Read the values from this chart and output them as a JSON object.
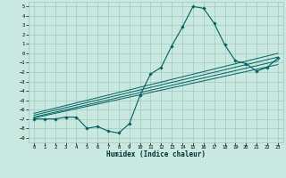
{
  "xlabel": "Humidex (Indice chaleur)",
  "bg_color": "#c8e8e0",
  "grid_color": "#a0c8c0",
  "line_color": "#006060",
  "xlim": [
    -0.5,
    23.5
  ],
  "ylim": [
    -9.5,
    5.5
  ],
  "yticks": [
    5,
    4,
    3,
    2,
    1,
    0,
    -1,
    -2,
    -3,
    -4,
    -5,
    -6,
    -7,
    -8,
    -9
  ],
  "xticks": [
    0,
    1,
    2,
    3,
    4,
    5,
    6,
    7,
    8,
    9,
    10,
    11,
    12,
    13,
    14,
    15,
    16,
    17,
    18,
    19,
    20,
    21,
    22,
    23
  ],
  "data_x": [
    0,
    1,
    2,
    3,
    4,
    5,
    6,
    7,
    8,
    9,
    10,
    11,
    12,
    13,
    14,
    15,
    16,
    17,
    18,
    19,
    20,
    21,
    22,
    23
  ],
  "data_y": [
    -7.0,
    -7.0,
    -7.0,
    -6.8,
    -6.8,
    -8.0,
    -7.8,
    -8.3,
    -8.5,
    -7.5,
    -4.5,
    -2.2,
    -1.5,
    0.8,
    2.8,
    5.0,
    4.8,
    3.2,
    0.9,
    -0.8,
    -1.1,
    -1.9,
    -1.5,
    -0.5
  ],
  "trend1_x": [
    0,
    23
  ],
  "trend1_y": [
    -6.8,
    -0.8
  ],
  "trend2_x": [
    0,
    23
  ],
  "trend2_y": [
    -6.9,
    -1.2
  ],
  "trend3_x": [
    0,
    23
  ],
  "trend3_y": [
    -6.6,
    -0.4
  ],
  "trend4_x": [
    0,
    23
  ],
  "trend4_y": [
    -6.4,
    0.0
  ]
}
